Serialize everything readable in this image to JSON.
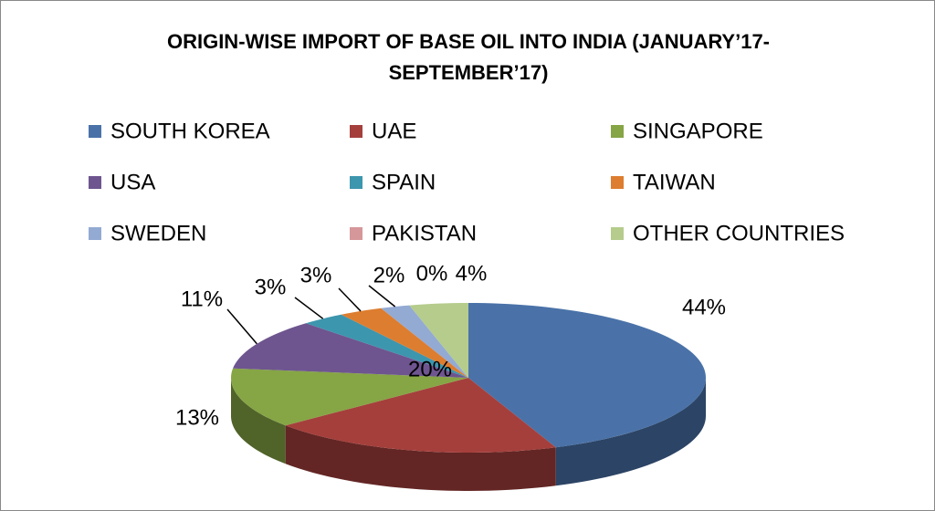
{
  "chart_data": {
    "type": "pie3d",
    "title": "ORIGIN-WISE IMPORT OF BASE OIL INTO INDIA (JANUARY’17-SEPTEMBER’17)",
    "categories": [
      "SOUTH KOREA",
      "UAE",
      "SINGAPORE",
      "USA",
      "SPAIN",
      "TAIWAN",
      "SWEDEN",
      "PAKISTAN",
      "OTHER COUNTRIES"
    ],
    "values": [
      44,
      20,
      13,
      11,
      3,
      3,
      2,
      0,
      4
    ],
    "value_labels": [
      "44%",
      "20%",
      "13%",
      "11%",
      "3%",
      "3%",
      "2%",
      "0%",
      "4%"
    ],
    "colors": [
      "#4a72a8",
      "#a53f3c",
      "#86a545",
      "#6e558f",
      "#3c96ae",
      "#dd7d2f",
      "#93aad3",
      "#d6979a",
      "#b5cc8c"
    ],
    "legend": "top"
  }
}
